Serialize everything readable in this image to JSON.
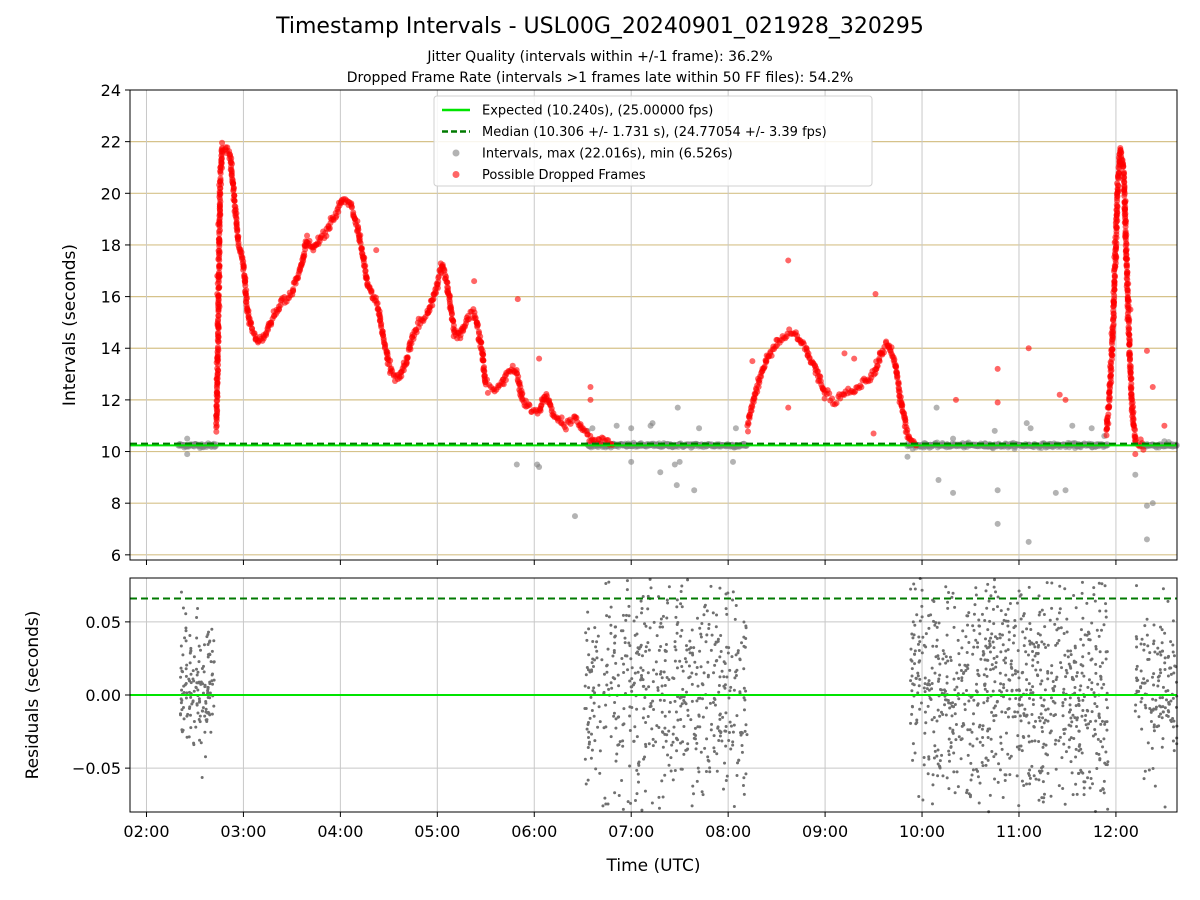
{
  "title": "Timestamp Intervals - USL00G_20240901_021928_320295",
  "subtitle_1": "Jitter Quality (intervals within +/-1 frame): 36.2%",
  "subtitle_2": "Dropped Frame Rate (intervals >1 frames late within 50 FF files): 54.2%",
  "colors": {
    "expected": "#00e400",
    "median": "#007a00",
    "normal_points": "#808080",
    "dropped_points": "#ff0000",
    "threshold_grid": "#d6c28a",
    "grid": "#c8c8c8",
    "residual_points": "#707070"
  },
  "chart_data": [
    {
      "type": "scatter",
      "ylabel": "Intervals (seconds)",
      "xlabel": "",
      "x_axis_units": "hours UTC",
      "xlim": [
        1.83,
        12.63
      ],
      "ylim": [
        5.8,
        24
      ],
      "x_ticks": [
        2,
        3,
        4,
        5,
        6,
        7,
        8,
        9,
        10,
        11,
        12
      ],
      "y_ticks": [
        6,
        8,
        10,
        12,
        14,
        16,
        18,
        20,
        22,
        24
      ],
      "y_tick_labels": [
        "6",
        "8",
        "10",
        "12",
        "14",
        "16",
        "18",
        "20",
        "22",
        "24"
      ],
      "threshold_lines": [
        6,
        8,
        10,
        12,
        14,
        16,
        18,
        20,
        22
      ],
      "legend_position": "top-center",
      "legend": [
        {
          "label": "Expected (10.240s), (25.00000 fps)",
          "kind": "solid-line"
        },
        {
          "label": "Median (10.306 +/- 1.731 s), (24.77054 +/- 3.39 fps)",
          "kind": "dashed-line"
        },
        {
          "label": "Intervals, max (22.016s), min (6.526s)",
          "kind": "gray-dot"
        },
        {
          "label": "Possible Dropped Frames",
          "kind": "red-dot"
        }
      ],
      "expected_value": 10.24,
      "median_value": 10.306,
      "dropped_frames_curve": [
        [
          2.72,
          10.9
        ],
        [
          2.74,
          14.5
        ],
        [
          2.76,
          20.5
        ],
        [
          2.78,
          21.8
        ],
        [
          2.82,
          21.8
        ],
        [
          2.86,
          21.5
        ],
        [
          2.9,
          20.0
        ],
        [
          2.95,
          18.0
        ],
        [
          3.0,
          17.3
        ],
        [
          3.04,
          15.5
        ],
        [
          3.08,
          14.8
        ],
        [
          3.15,
          14.2
        ],
        [
          3.22,
          14.5
        ],
        [
          3.3,
          15.2
        ],
        [
          3.4,
          15.8
        ],
        [
          3.5,
          16.2
        ],
        [
          3.6,
          17.2
        ],
        [
          3.65,
          18.2
        ],
        [
          3.72,
          17.8
        ],
        [
          3.8,
          18.3
        ],
        [
          3.87,
          18.6
        ],
        [
          3.95,
          19.2
        ],
        [
          4.03,
          19.8
        ],
        [
          4.1,
          19.6
        ],
        [
          4.17,
          18.8
        ],
        [
          4.23,
          17.6
        ],
        [
          4.28,
          16.5
        ],
        [
          4.33,
          16.0
        ],
        [
          4.38,
          15.7
        ],
        [
          4.44,
          14.5
        ],
        [
          4.52,
          13.1
        ],
        [
          4.6,
          12.8
        ],
        [
          4.68,
          13.5
        ],
        [
          4.74,
          14.4
        ],
        [
          4.8,
          14.9
        ],
        [
          4.9,
          15.3
        ],
        [
          5.0,
          16.5
        ],
        [
          5.05,
          17.2
        ],
        [
          5.1,
          16.5
        ],
        [
          5.18,
          14.6
        ],
        [
          5.23,
          14.4
        ],
        [
          5.32,
          15.2
        ],
        [
          5.38,
          15.4
        ],
        [
          5.45,
          14.2
        ],
        [
          5.5,
          12.6
        ],
        [
          5.58,
          12.4
        ],
        [
          5.66,
          12.6
        ],
        [
          5.72,
          13.0
        ],
        [
          5.78,
          13.2
        ],
        [
          5.82,
          13.0
        ],
        [
          5.88,
          12.0
        ],
        [
          5.95,
          11.7
        ],
        [
          6.05,
          11.5
        ],
        [
          6.12,
          12.2
        ],
        [
          6.2,
          11.4
        ],
        [
          6.3,
          11.0
        ],
        [
          6.42,
          11.3
        ],
        [
          6.5,
          10.9
        ],
        [
          6.6,
          10.5
        ],
        [
          6.7,
          10.3
        ],
        [
          6.82,
          10.3
        ]
      ],
      "dropped_frames_curve_2": [
        [
          8.2,
          11.0
        ],
        [
          8.3,
          12.5
        ],
        [
          8.4,
          13.6
        ],
        [
          8.5,
          14.2
        ],
        [
          8.6,
          14.5
        ],
        [
          8.7,
          14.5
        ],
        [
          8.8,
          14.0
        ],
        [
          8.9,
          13.2
        ],
        [
          9.0,
          12.2
        ],
        [
          9.1,
          12.0
        ],
        [
          9.2,
          12.2
        ],
        [
          9.3,
          12.4
        ],
        [
          9.4,
          12.7
        ],
        [
          9.5,
          13.0
        ],
        [
          9.6,
          14.0
        ],
        [
          9.65,
          14.2
        ],
        [
          9.72,
          13.5
        ],
        [
          9.8,
          11.5
        ],
        [
          9.86,
          10.5
        ],
        [
          9.95,
          10.3
        ]
      ],
      "dropped_frames_curve_3": [
        [
          11.9,
          10.7
        ],
        [
          11.93,
          12.0
        ],
        [
          11.96,
          14.0
        ],
        [
          11.99,
          17.0
        ],
        [
          12.02,
          20.5
        ],
        [
          12.05,
          21.7
        ],
        [
          12.08,
          20.8
        ],
        [
          12.11,
          17.5
        ],
        [
          12.14,
          14.0
        ],
        [
          12.17,
          11.5
        ],
        [
          12.2,
          10.4
        ],
        [
          12.3,
          10.3
        ]
      ],
      "dropped_outliers": [
        [
          2.73,
          12.6
        ],
        [
          2.73,
          16.1
        ],
        [
          2.73,
          16.8
        ],
        [
          2.74,
          18.8
        ],
        [
          4.37,
          17.8
        ],
        [
          5.38,
          16.6
        ],
        [
          5.83,
          15.9
        ],
        [
          6.05,
          13.6
        ],
        [
          6.58,
          12.0
        ],
        [
          6.58,
          12.5
        ],
        [
          8.25,
          13.5
        ],
        [
          8.62,
          17.4
        ],
        [
          8.62,
          11.7
        ],
        [
          9.2,
          13.8
        ],
        [
          9.3,
          13.6
        ],
        [
          9.52,
          16.1
        ],
        [
          9.5,
          10.7
        ],
        [
          10.35,
          12.0
        ],
        [
          10.78,
          11.9
        ],
        [
          10.78,
          13.2
        ],
        [
          11.1,
          14.0
        ],
        [
          11.42,
          12.2
        ],
        [
          11.48,
          12.0
        ],
        [
          12.1,
          19.7
        ],
        [
          12.15,
          15.5
        ],
        [
          12.2,
          9.9
        ],
        [
          12.32,
          13.9
        ],
        [
          12.38,
          12.5
        ],
        [
          12.5,
          11.0
        ]
      ],
      "gray_base_segments": [
        {
          "from": 2.33,
          "to": 2.72,
          "y": 10.24
        },
        {
          "from": 6.55,
          "to": 8.2,
          "y": 10.24
        },
        {
          "from": 9.85,
          "to": 11.92,
          "y": 10.24
        },
        {
          "from": 12.25,
          "to": 12.63,
          "y": 10.24
        }
      ],
      "gray_outliers": [
        [
          2.42,
          10.5
        ],
        [
          2.42,
          9.9
        ],
        [
          2.72,
          11.4
        ],
        [
          6.42,
          7.5
        ],
        [
          5.82,
          9.5
        ],
        [
          6.03,
          9.5
        ],
        [
          6.05,
          9.4
        ],
        [
          6.55,
          10.8
        ],
        [
          6.6,
          10.9
        ],
        [
          6.85,
          11.0
        ],
        [
          7.0,
          10.9
        ],
        [
          7.0,
          9.6
        ],
        [
          7.2,
          11.0
        ],
        [
          7.22,
          11.1
        ],
        [
          7.3,
          9.2
        ],
        [
          7.45,
          9.5
        ],
        [
          7.5,
          9.6
        ],
        [
          7.48,
          11.7
        ],
        [
          7.47,
          8.7
        ],
        [
          7.65,
          8.5
        ],
        [
          7.7,
          10.9
        ],
        [
          8.05,
          9.6
        ],
        [
          8.08,
          10.9
        ],
        [
          10.15,
          11.7
        ],
        [
          10.17,
          8.9
        ],
        [
          10.32,
          8.4
        ],
        [
          10.32,
          10.5
        ],
        [
          10.75,
          10.8
        ],
        [
          10.78,
          8.5
        ],
        [
          10.78,
          7.2
        ],
        [
          11.08,
          11.1
        ],
        [
          11.1,
          6.5
        ],
        [
          11.12,
          10.9
        ],
        [
          11.38,
          8.4
        ],
        [
          11.48,
          8.5
        ],
        [
          11.55,
          11.0
        ],
        [
          11.75,
          10.9
        ],
        [
          11.88,
          10.6
        ],
        [
          12.2,
          9.1
        ],
        [
          12.32,
          6.6
        ],
        [
          12.32,
          7.9
        ],
        [
          12.38,
          8.0
        ],
        [
          12.5,
          10.4
        ],
        [
          9.85,
          9.8
        ]
      ]
    },
    {
      "type": "scatter",
      "xlabel": "Time (UTC)",
      "ylabel": "Residuals (seconds)",
      "xlim": [
        1.83,
        12.63
      ],
      "ylim": [
        -0.08,
        0.08
      ],
      "x_ticks": [
        2,
        3,
        4,
        5,
        6,
        7,
        8,
        9,
        10,
        11,
        12
      ],
      "x_tick_labels": [
        "02:00",
        "03:00",
        "04:00",
        "05:00",
        "06:00",
        "07:00",
        "08:00",
        "09:00",
        "10:00",
        "11:00",
        "12:00"
      ],
      "y_ticks": [
        0.05,
        0.0,
        -0.05
      ],
      "y_tick_labels": [
        "0.05",
        "0.00",
        "−0.05"
      ],
      "expected_line": 0.0,
      "median_line": 0.066,
      "clusters": [
        {
          "from": 2.35,
          "to": 2.7,
          "center": 0.005,
          "spread": 0.022,
          "count": 160
        },
        {
          "from": 6.52,
          "to": 8.2,
          "center": 0.0,
          "spread": 0.045,
          "count": 620
        },
        {
          "from": 9.88,
          "to": 11.92,
          "center": 0.005,
          "spread": 0.04,
          "count": 900
        },
        {
          "from": 12.2,
          "to": 12.63,
          "center": 0.005,
          "spread": 0.028,
          "count": 150
        }
      ]
    }
  ]
}
